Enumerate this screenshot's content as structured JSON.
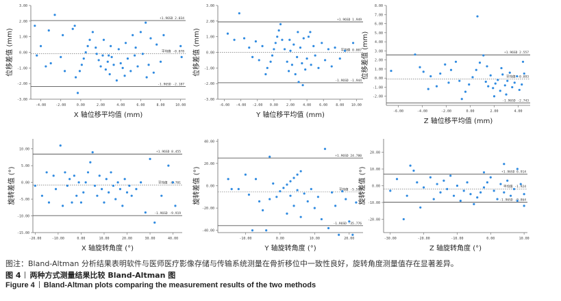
{
  "chart_data": [
    {
      "type": "scatter",
      "ylabel": "位移差值 (mm)",
      "xlabel": "X 轴位移平均值 (mm)",
      "xlim": [
        -5,
        10.5
      ],
      "ylim": [
        -3,
        3
      ],
      "xticks": [
        "-4.00",
        "-2.00",
        "0.00",
        "2.00",
        "4.00",
        "6.00",
        "8.00",
        "10.00"
      ],
      "yticks": [
        "-3.00",
        "-2.00",
        "-1.00",
        "0.00",
        "1.00",
        "2.00",
        "3.00"
      ],
      "ref_lines": [
        {
          "label": "+1.96SD 2.034",
          "y": 2.034,
          "style": "solid"
        },
        {
          "label": "平均值 -0.078",
          "y": -0.078,
          "style": "dashed"
        },
        {
          "label": "-1.96SD -2.187",
          "y": -2.187,
          "style": "solid"
        }
      ],
      "points": [
        [
          -4.6,
          1.7
        ],
        [
          -3.2,
          1.4
        ],
        [
          -2.6,
          2.4
        ],
        [
          -1.8,
          1.1
        ],
        [
          -4.0,
          0.4
        ],
        [
          -3.5,
          -0.9
        ],
        [
          -2.0,
          -0.3
        ],
        [
          -1.6,
          -1.2
        ],
        [
          -3.0,
          -0.7
        ],
        [
          -4.4,
          -0.2
        ],
        [
          -0.8,
          1.5
        ],
        [
          -0.6,
          1.7
        ],
        [
          -0.5,
          -1.6
        ],
        [
          -0.3,
          -2.6
        ],
        [
          -0.1,
          -1.2
        ],
        [
          0.1,
          -0.8
        ],
        [
          0.3,
          -0.4
        ],
        [
          0.5,
          0.0
        ],
        [
          0.7,
          0.4
        ],
        [
          0.9,
          0.8
        ],
        [
          1.2,
          1.3
        ],
        [
          1.5,
          0.3
        ],
        [
          1.8,
          -0.5
        ],
        [
          2.0,
          -0.9
        ],
        [
          2.2,
          -0.2
        ],
        [
          2.5,
          -1.1
        ],
        [
          2.7,
          -0.6
        ],
        [
          2.9,
          -1.4
        ],
        [
          3.1,
          -0.3
        ],
        [
          3.3,
          -0.8
        ],
        [
          3.6,
          -1.8
        ],
        [
          3.8,
          0.2
        ],
        [
          4.0,
          -0.7
        ],
        [
          4.2,
          -1.0
        ],
        [
          4.5,
          0.6
        ],
        [
          4.7,
          -0.4
        ],
        [
          5.0,
          -1.2
        ],
        [
          5.2,
          1.1
        ],
        [
          5.5,
          0.3
        ],
        [
          5.7,
          -0.9
        ],
        [
          6.0,
          1.3
        ],
        [
          6.2,
          -0.1
        ],
        [
          6.5,
          1.9
        ],
        [
          6.8,
          -0.8
        ],
        [
          7.0,
          0.9
        ],
        [
          7.3,
          -1.3
        ],
        [
          7.6,
          0.5
        ],
        [
          8.0,
          -0.6
        ],
        [
          8.3,
          1.1
        ],
        [
          10.0,
          0.4
        ],
        [
          10.1,
          -0.3
        ],
        [
          2.3,
          0.8
        ],
        [
          3.0,
          0.4
        ],
        [
          4.4,
          -1.5
        ],
        [
          5.4,
          -0.2
        ],
        [
          6.6,
          -1.6
        ],
        [
          1.6,
          -0.1
        ],
        [
          2.8,
          -0.2
        ]
      ]
    },
    {
      "type": "scatter",
      "ylabel": "位移差值 (mm)",
      "xlabel": "Y 轴位移平均值 (mm)",
      "xlim": [
        -6.8,
        10.8
      ],
      "ylim": [
        -3,
        3
      ],
      "xticks": [
        "-6.00",
        "-4.00",
        "-2.00",
        "0.00",
        "2.00",
        "4.00",
        "6.00",
        "8.00",
        "10.00"
      ],
      "yticks": [
        "-3.00",
        "-2.00",
        "-1.00",
        "0.00",
        "1.00",
        "2.00",
        "3.00"
      ],
      "ref_lines": [
        {
          "label": "+1.96SD 1.949",
          "y": 1.949,
          "style": "solid"
        },
        {
          "label": "平均值 0.007",
          "y": 0.007,
          "style": "dashed"
        },
        {
          "label": "-1.96SD -1.944",
          "y": -1.944,
          "style": "solid"
        }
      ],
      "points": [
        [
          -5.6,
          1.2
        ],
        [
          -4.8,
          0.8
        ],
        [
          -4.2,
          2.5
        ],
        [
          -3.6,
          0.9
        ],
        [
          -3.0,
          0.3
        ],
        [
          -2.6,
          -0.3
        ],
        [
          -2.2,
          0.7
        ],
        [
          -1.8,
          -0.5
        ],
        [
          -1.4,
          0.4
        ],
        [
          -1.0,
          -1.4
        ],
        [
          -0.8,
          -1.0
        ],
        [
          -0.4,
          -0.6
        ],
        [
          -0.2,
          -0.2
        ],
        [
          0.0,
          0.2
        ],
        [
          0.2,
          0.6
        ],
        [
          0.4,
          1.0
        ],
        [
          0.6,
          1.4
        ],
        [
          0.8,
          1.8
        ],
        [
          1.0,
          0.8
        ],
        [
          1.3,
          0.2
        ],
        [
          1.6,
          -0.6
        ],
        [
          1.8,
          -1.2
        ],
        [
          2.0,
          0.1
        ],
        [
          2.2,
          -0.8
        ],
        [
          2.4,
          0.5
        ],
        [
          2.6,
          -1.4
        ],
        [
          2.8,
          -0.3
        ],
        [
          3.0,
          -1.9
        ],
        [
          3.2,
          0.3
        ],
        [
          3.4,
          -0.7
        ],
        [
          3.6,
          0.9
        ],
        [
          3.8,
          -1.1
        ],
        [
          4.0,
          -0.4
        ],
        [
          4.2,
          1.0
        ],
        [
          4.5,
          -0.8
        ],
        [
          4.8,
          0.4
        ],
        [
          5.0,
          -0.2
        ],
        [
          5.4,
          -1.0
        ],
        [
          5.8,
          0.6
        ],
        [
          6.2,
          -0.5
        ],
        [
          6.6,
          0.2
        ],
        [
          7.0,
          -0.9
        ],
        [
          7.4,
          0.3
        ],
        [
          8.0,
          -0.4
        ],
        [
          8.6,
          0.1
        ],
        [
          9.6,
          0.6
        ],
        [
          2.9,
          1.3
        ],
        [
          1.9,
          0.8
        ],
        [
          3.5,
          -2.1
        ],
        [
          4.4,
          1.3
        ]
      ]
    },
    {
      "type": "scatter",
      "ylabel": "位移差值 (mm)",
      "xlabel": "Z 轴位移平均值 (mm)",
      "xlim": [
        -7,
        5
      ],
      "ylim": [
        -3,
        8
      ],
      "xticks": [
        "-6.00",
        "-4.00",
        "-2.00",
        "0.00",
        "2.00",
        "4.00"
      ],
      "yticks": [
        "-2.00",
        "-1.00",
        "0.00",
        "1.00",
        "2.00",
        "3.00",
        "4.00",
        "5.00",
        "6.00",
        "7.00",
        "8.00"
      ],
      "ref_lines": [
        {
          "label": "+1.96SD 2.557",
          "y": 2.557,
          "style": "solid"
        },
        {
          "label": "平均值 -0.093",
          "y": -0.093,
          "style": "dashed"
        },
        {
          "label": "-1.96SD -2.743",
          "y": -2.743,
          "style": "solid"
        }
      ],
      "points": [
        [
          -6.6,
          0.8
        ],
        [
          -4.6,
          2.6
        ],
        [
          -4.2,
          1.2
        ],
        [
          -3.9,
          0.7
        ],
        [
          -3.5,
          -1.2
        ],
        [
          -3.3,
          0.2
        ],
        [
          -2.8,
          -0.9
        ],
        [
          -2.5,
          0.5
        ],
        [
          -2.1,
          1.5
        ],
        [
          -1.8,
          -0.5
        ],
        [
          -1.6,
          0.9
        ],
        [
          -1.2,
          1.8
        ],
        [
          -0.9,
          -0.3
        ],
        [
          -0.7,
          -2.3
        ],
        [
          -0.4,
          -1.5
        ],
        [
          -0.1,
          -0.7
        ],
        [
          0.2,
          0.1
        ],
        [
          0.5,
          0.9
        ],
        [
          0.8,
          1.7
        ],
        [
          1.1,
          2.5
        ],
        [
          0.6,
          6.8
        ],
        [
          1.3,
          -0.4
        ],
        [
          1.5,
          -0.9
        ],
        [
          1.7,
          0.3
        ],
        [
          1.9,
          -1.1
        ],
        [
          2.1,
          -0.6
        ],
        [
          2.3,
          -0.2
        ],
        [
          2.5,
          -1.4
        ],
        [
          2.7,
          0.4
        ],
        [
          2.9,
          -0.8
        ],
        [
          3.1,
          -0.3
        ],
        [
          3.3,
          0.6
        ],
        [
          3.5,
          -1.0
        ],
        [
          3.7,
          -0.5
        ],
        [
          3.9,
          0.2
        ],
        [
          4.1,
          -1.3
        ],
        [
          4.3,
          -0.7
        ],
        [
          4.5,
          0.5
        ],
        [
          2.0,
          -2.0
        ],
        [
          3.0,
          -1.8
        ],
        [
          2.6,
          1.1
        ],
        [
          1.4,
          1.3
        ],
        [
          4.4,
          1.8
        ]
      ]
    },
    {
      "type": "scatter",
      "ylabel": "旋转差值 (°)",
      "xlabel": "X 轴旋转角度 (°)",
      "xlim": [
        -21,
        44
      ],
      "ylim": [
        -15,
        13
      ],
      "xticks": [
        "-20.00",
        "-10.00",
        "0.00",
        "10.00",
        "20.00",
        "30.00",
        "40.00"
      ],
      "yticks": [
        "-15.00",
        "-10.00",
        "-5.00",
        "0.00",
        "5.00",
        "10.00"
      ],
      "ref_lines": [
        {
          "label": "+1.96SD 8.455",
          "y": 8.455,
          "style": "solid"
        },
        {
          "label": "平均值 -0.781",
          "y": -0.781,
          "style": "dashed"
        },
        {
          "label": "-1.96SD -9.919",
          "y": -9.919,
          "style": "solid"
        }
      ],
      "points": [
        [
          -20,
          -1
        ],
        [
          -17,
          -4
        ],
        [
          -15,
          3
        ],
        [
          -14,
          -6
        ],
        [
          -12,
          2
        ],
        [
          -11,
          -2
        ],
        [
          -9,
          11
        ],
        [
          -8,
          -7
        ],
        [
          -7,
          3
        ],
        [
          -6,
          -1
        ],
        [
          -5,
          1
        ],
        [
          -4,
          -6
        ],
        [
          -3,
          2
        ],
        [
          -2,
          -4
        ],
        [
          -1,
          0
        ],
        [
          0,
          -6
        ],
        [
          1,
          -3
        ],
        [
          2,
          0
        ],
        [
          3,
          3
        ],
        [
          4,
          6
        ],
        [
          5,
          9
        ],
        [
          6,
          -1
        ],
        [
          7,
          -4
        ],
        [
          8,
          2
        ],
        [
          9,
          -2
        ],
        [
          10,
          -6
        ],
        [
          11,
          1
        ],
        [
          12,
          -3
        ],
        [
          13,
          3
        ],
        [
          14,
          -1
        ],
        [
          15,
          -5
        ],
        [
          16,
          0
        ],
        [
          17,
          -2
        ],
        [
          18,
          -7
        ],
        [
          19,
          1
        ],
        [
          20,
          -3
        ],
        [
          21,
          -1
        ],
        [
          22,
          -4
        ],
        [
          24,
          -2
        ],
        [
          26,
          0
        ],
        [
          28,
          -9
        ],
        [
          30,
          7
        ],
        [
          32,
          -12
        ],
        [
          35,
          -4
        ],
        [
          38,
          5
        ],
        [
          40,
          0
        ],
        [
          41,
          -7
        ]
      ]
    },
    {
      "type": "scatter",
      "ylabel": "旋转差值 (°)",
      "xlabel": "Y 轴旋转角度 (°)",
      "xlim": [
        -18,
        24
      ],
      "ylim": [
        -42,
        42
      ],
      "xticks": [
        "-10.00",
        "0.00",
        "10.00",
        "20.00"
      ],
      "yticks": [
        "-40.00",
        "-20.00",
        "0.00",
        "20.00",
        "40.00"
      ],
      "ref_lines": [
        {
          "label": "+1.96SD 24.780",
          "y": 24.78,
          "style": "solid"
        },
        {
          "label": "平均值 -5.513",
          "y": -5.513,
          "style": "dashed"
        },
        {
          "label": "-1.96SD -35.776",
          "y": -35.776,
          "style": "solid"
        }
      ],
      "points": [
        [
          -15,
          6
        ],
        [
          -12,
          -3
        ],
        [
          -10,
          10
        ],
        [
          -9,
          -8
        ],
        [
          -8,
          -40
        ],
        [
          -7,
          6
        ],
        [
          -6,
          -14
        ],
        [
          -5,
          -22
        ],
        [
          -4,
          -40
        ],
        [
          -3,
          -12
        ],
        [
          -2,
          2
        ],
        [
          -1,
          -10
        ],
        [
          0,
          -5
        ],
        [
          1,
          -2
        ],
        [
          2,
          1
        ],
        [
          3,
          4
        ],
        [
          4,
          7
        ],
        [
          5,
          10
        ],
        [
          6,
          13
        ],
        [
          2,
          -25
        ],
        [
          3,
          -9
        ],
        [
          4,
          -18
        ],
        [
          5,
          -4
        ],
        [
          6,
          -28
        ],
        [
          7,
          -7
        ],
        [
          8,
          -14
        ],
        [
          9,
          -3
        ],
        [
          10,
          -20
        ],
        [
          11,
          -10
        ],
        [
          12,
          -30
        ],
        [
          13,
          33
        ],
        [
          14,
          -38
        ],
        [
          15,
          -6
        ],
        [
          16,
          -18
        ],
        [
          17,
          -44
        ],
        [
          18,
          -5
        ],
        [
          19,
          -12
        ],
        [
          20,
          -32
        ],
        [
          21,
          -44
        ],
        [
          22,
          -15
        ],
        [
          -3,
          26
        ],
        [
          -14,
          -3
        ]
      ]
    },
    {
      "type": "scatter",
      "ylabel": "旋转差值 (°)",
      "xlabel": "Z 轴旋转角度 (°)",
      "xlim": [
        -32,
        11
      ],
      "ylim": [
        -28,
        28
      ],
      "xticks": [
        "-30.00",
        "-20.00",
        "-10.00",
        "0.00",
        "10.00"
      ],
      "yticks": [
        "-20.00",
        "-10.00",
        "0.00",
        "10.00",
        "20.00"
      ],
      "ref_lines": [
        {
          "label": "+1.96SD 6.914",
          "y": 6.914,
          "style": "solid"
        },
        {
          "label": "平均值 -1.924",
          "y": -1.924,
          "style": "dashed"
        },
        {
          "label": "-1.96SD -9.864",
          "y": -9.864,
          "style": "solid"
        }
      ],
      "points": [
        [
          -30,
          -3
        ],
        [
          -28,
          4
        ],
        [
          -25,
          -6
        ],
        [
          -23,
          9
        ],
        [
          -22,
          2
        ],
        [
          -20,
          -1
        ],
        [
          -18,
          5
        ],
        [
          -17,
          -8
        ],
        [
          -16,
          1
        ],
        [
          -15,
          -4
        ],
        [
          -14,
          3
        ],
        [
          -13,
          -2
        ],
        [
          -12,
          6
        ],
        [
          -11,
          -6
        ],
        [
          -10,
          0
        ],
        [
          -9,
          -9
        ],
        [
          -8,
          -3
        ],
        [
          -7,
          2
        ],
        [
          -6,
          -5
        ],
        [
          -5,
          -11
        ],
        [
          -4,
          -7
        ],
        [
          -3,
          -4
        ],
        [
          -2,
          -1
        ],
        [
          -1,
          2
        ],
        [
          0,
          5
        ],
        [
          1,
          -3
        ],
        [
          2,
          -8
        ],
        [
          3,
          1
        ],
        [
          4,
          -4
        ],
        [
          5,
          3
        ],
        [
          6,
          -6
        ],
        [
          7,
          -2
        ],
        [
          8,
          -9
        ],
        [
          9,
          1
        ],
        [
          10,
          -5
        ],
        [
          10,
          -12
        ],
        [
          -26,
          -20
        ],
        [
          -21,
          -13
        ],
        [
          -24,
          12
        ],
        [
          -2,
          8
        ],
        [
          4,
          13
        ],
        [
          8,
          10
        ]
      ]
    }
  ],
  "caption": {
    "note": "图注：Bland-Altman 分析结果表明软件与医师医疗影像存储与传输系统测量在骨折移位中一致性良好，旋转角度测量值存在显著差异。",
    "fig_cn_label": "图 4",
    "fig_cn_title": "两种方式测量结果比较 Bland-Altman 图",
    "fig_en_label": "Figure 4",
    "fig_en_title": "Bland-Altman plots comparing the measurement results of the two methods"
  },
  "colors": {
    "points": "#2f8ae0",
    "lines": "#555555",
    "axis": "#666666"
  }
}
